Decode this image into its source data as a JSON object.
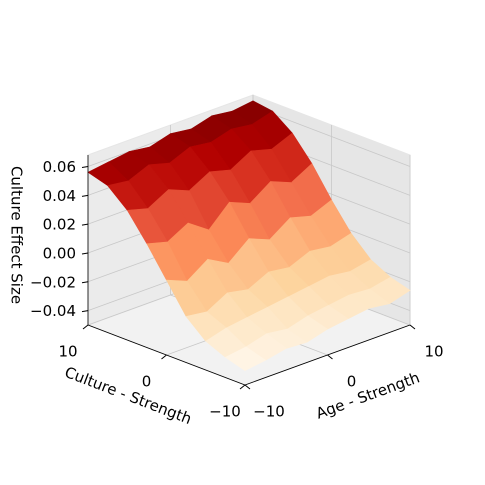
{
  "chart_data": {
    "type": "surface3d",
    "xlabel": "Age - Strength",
    "ylabel": "Culture - Strength",
    "zlabel": "Culture Effect Size",
    "x": [
      -10,
      -7.5,
      -5,
      -2.5,
      0,
      2.5,
      5,
      7.5,
      10
    ],
    "y": [
      -10,
      -7.5,
      -5,
      -2.5,
      0,
      2.5,
      5,
      7.5,
      10
    ],
    "z": [
      [
        -0.04,
        -0.038,
        -0.035,
        -0.036,
        -0.032,
        -0.03,
        -0.028,
        -0.03,
        -0.026
      ],
      [
        -0.036,
        -0.034,
        -0.03,
        -0.032,
        -0.028,
        -0.026,
        -0.024,
        -0.025,
        -0.022
      ],
      [
        -0.03,
        -0.026,
        -0.024,
        -0.022,
        -0.02,
        -0.018,
        -0.016,
        -0.018,
        -0.015
      ],
      [
        -0.018,
        -0.02,
        -0.012,
        -0.015,
        -0.008,
        -0.01,
        -0.004,
        -0.006,
        -0.002
      ],
      [
        0.002,
        -0.004,
        0.006,
        -0.002,
        0.01,
        0.004,
        0.014,
        0.01,
        0.016
      ],
      [
        0.022,
        0.018,
        0.026,
        0.016,
        0.03,
        0.024,
        0.034,
        0.028,
        0.036
      ],
      [
        0.04,
        0.036,
        0.044,
        0.038,
        0.046,
        0.042,
        0.05,
        0.046,
        0.052
      ],
      [
        0.052,
        0.05,
        0.056,
        0.052,
        0.058,
        0.056,
        0.06,
        0.058,
        0.062
      ],
      [
        0.056,
        0.058,
        0.06,
        0.058,
        0.062,
        0.06,
        0.064,
        0.062,
        0.064
      ]
    ],
    "colormap": [
      "#fff7ec",
      "#fee8c8",
      "#fdd49e",
      "#fdbb84",
      "#fc8d59",
      "#ef6548",
      "#d7301f",
      "#b30000",
      "#7f0000"
    ],
    "xlim": [
      -10,
      10
    ],
    "ylim": [
      -10,
      10
    ],
    "zlim": [
      -0.05,
      0.068
    ],
    "xticks": [
      {
        "value": -10,
        "label": "−10"
      },
      0,
      10
    ],
    "yticks": [
      {
        "value": -10,
        "label": "−10"
      },
      0,
      10
    ],
    "zticks": [
      {
        "value": -0.04,
        "label": "−0.04"
      },
      {
        "value": -0.02,
        "label": "−0.02"
      },
      {
        "value": 0,
        "label": "0.00"
      },
      {
        "value": 0.02,
        "label": "0.02"
      },
      {
        "value": 0.04,
        "label": "0.04"
      },
      {
        "value": 0.06,
        "label": "0.06"
      }
    ],
    "grid": true
  }
}
